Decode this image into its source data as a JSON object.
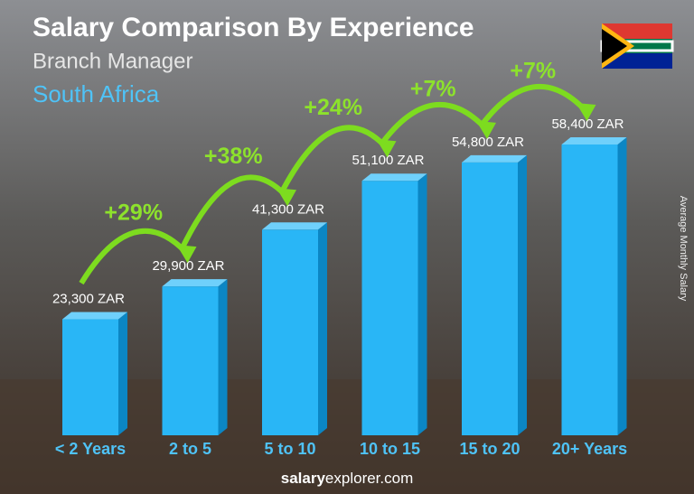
{
  "chart_data": {
    "type": "bar3d",
    "title": "Salary Comparison By Experience",
    "subtitle": "Branch Manager",
    "location": "South Africa",
    "y_label": "Average Monthly Salary",
    "categories": [
      "< 2 Years",
      "2 to 5",
      "5 to 10",
      "10 to 15",
      "15 to 20",
      "20+ Years"
    ],
    "values": [
      23300,
      29900,
      41300,
      51100,
      54800,
      58400
    ],
    "value_labels": [
      "23,300 ZAR",
      "29,900 ZAR",
      "41,300 ZAR",
      "51,100 ZAR",
      "54,800 ZAR",
      "58,400 ZAR"
    ],
    "changes": [
      "+29%",
      "+38%",
      "+24%",
      "+7%",
      "+7%"
    ],
    "color": "#29b6f6"
  },
  "footer": {
    "brand": "salary",
    "domain": "explorer.com"
  }
}
